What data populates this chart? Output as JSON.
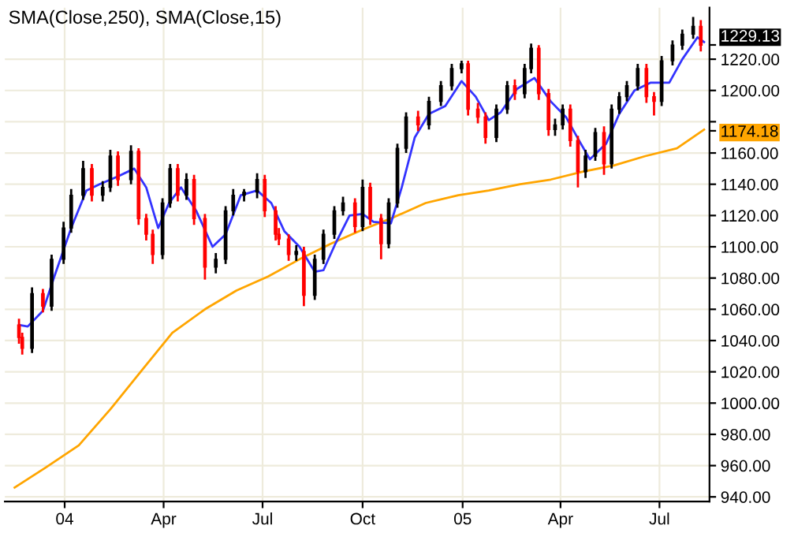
{
  "chart_data": {
    "type": "candlestick",
    "title": "SMA(Close,250), SMA(Close,15)",
    "x": [
      "2003-11-20",
      "2003-11-23",
      "2003-12-02",
      "2003-12-12",
      "2003-12-20",
      "2003-12-31",
      "2004-01-07",
      "2004-01-18",
      "2004-01-26",
      "2004-02-05",
      "2004-02-12",
      "2004-02-19",
      "2004-03-02",
      "2004-03-09",
      "2004-03-16",
      "2004-03-22",
      "2004-03-31",
      "2004-04-07",
      "2004-04-14",
      "2004-04-22",
      "2004-04-29",
      "2004-05-09",
      "2004-05-19",
      "2004-05-28",
      "2004-06-04",
      "2004-06-14",
      "2004-06-26",
      "2004-07-03",
      "2004-07-13",
      "2004-07-16",
      "2004-07-25",
      "2004-08-01",
      "2004-08-08",
      "2004-08-18",
      "2004-08-26",
      "2004-09-05",
      "2004-09-13",
      "2004-09-24",
      "2004-10-01",
      "2004-10-08",
      "2004-10-18",
      "2004-10-25",
      "2004-11-02",
      "2004-11-10",
      "2004-11-21",
      "2004-12-01",
      "2004-12-12",
      "2004-12-22",
      "2004-12-31",
      "2005-01-06",
      "2005-01-15",
      "2005-01-22",
      "2005-02-01",
      "2005-02-11",
      "2005-02-18",
      "2005-02-27",
      "2005-03-05",
      "2005-03-12",
      "2005-03-21",
      "2005-03-27",
      "2005-04-03",
      "2005-04-10",
      "2005-04-17",
      "2005-04-24",
      "2005-05-03",
      "2005-05-11",
      "2005-05-18",
      "2005-05-25",
      "2005-06-01",
      "2005-06-11",
      "2005-06-19",
      "2005-06-26",
      "2005-07-03",
      "2005-07-13",
      "2005-07-22",
      "2005-08-01",
      "2005-08-08"
    ],
    "ohlc": [
      [
        1050,
        1054,
        1038,
        1042
      ],
      [
        1042,
        1045,
        1031,
        1035
      ],
      [
        1035,
        1074,
        1032,
        1070
      ],
      [
        1070,
        1073,
        1058,
        1062
      ],
      [
        1062,
        1095,
        1059,
        1092
      ],
      [
        1092,
        1116,
        1089,
        1112
      ],
      [
        1112,
        1137,
        1109,
        1133
      ],
      [
        1133,
        1155,
        1130,
        1150
      ],
      [
        1150,
        1153,
        1129,
        1133
      ],
      [
        1133,
        1142,
        1129,
        1138
      ],
      [
        1138,
        1162,
        1135,
        1158
      ],
      [
        1158,
        1161,
        1139,
        1143
      ],
      [
        1143,
        1165,
        1140,
        1161
      ],
      [
        1161,
        1163,
        1114,
        1118
      ],
      [
        1118,
        1121,
        1104,
        1108
      ],
      [
        1108,
        1111,
        1089,
        1095
      ],
      [
        1095,
        1131,
        1092,
        1128
      ],
      [
        1128,
        1153,
        1125,
        1150
      ],
      [
        1150,
        1153,
        1129,
        1133
      ],
      [
        1133,
        1147,
        1130,
        1143
      ],
      [
        1143,
        1146,
        1114,
        1118
      ],
      [
        1118,
        1121,
        1079,
        1087
      ],
      [
        1087,
        1096,
        1083,
        1092
      ],
      [
        1092,
        1126,
        1089,
        1123
      ],
      [
        1123,
        1137,
        1120,
        1133
      ],
      [
        1133,
        1137,
        1129,
        1135
      ],
      [
        1135,
        1147,
        1131,
        1143
      ],
      [
        1143,
        1146,
        1119,
        1123
      ],
      [
        1123,
        1126,
        1104,
        1108
      ],
      [
        1108,
        1112,
        1101,
        1105
      ],
      [
        1105,
        1108,
        1091,
        1095
      ],
      [
        1095,
        1101,
        1091,
        1097
      ],
      [
        1097,
        1100,
        1062,
        1069
      ],
      [
        1069,
        1095,
        1066,
        1092
      ],
      [
        1092,
        1111,
        1089,
        1108
      ],
      [
        1108,
        1126,
        1105,
        1123
      ],
      [
        1123,
        1132,
        1120,
        1128
      ],
      [
        1128,
        1131,
        1109,
        1113
      ],
      [
        1113,
        1143,
        1110,
        1138
      ],
      [
        1138,
        1141,
        1114,
        1118
      ],
      [
        1118,
        1121,
        1092,
        1102
      ],
      [
        1102,
        1131,
        1099,
        1128
      ],
      [
        1128,
        1166,
        1125,
        1163
      ],
      [
        1163,
        1186,
        1160,
        1183
      ],
      [
        1183,
        1187,
        1174,
        1178
      ],
      [
        1178,
        1196,
        1175,
        1193
      ],
      [
        1193,
        1206,
        1190,
        1203
      ],
      [
        1203,
        1217,
        1200,
        1214
      ],
      [
        1214,
        1219,
        1211,
        1217
      ],
      [
        1217,
        1219,
        1184,
        1188
      ],
      [
        1188,
        1192,
        1179,
        1183
      ],
      [
        1183,
        1186,
        1166,
        1170
      ],
      [
        1170,
        1191,
        1167,
        1188
      ],
      [
        1188,
        1206,
        1185,
        1203
      ],
      [
        1203,
        1207,
        1194,
        1198
      ],
      [
        1198,
        1217,
        1195,
        1214
      ],
      [
        1214,
        1230,
        1211,
        1227
      ],
      [
        1227,
        1229,
        1194,
        1198
      ],
      [
        1198,
        1201,
        1171,
        1175
      ],
      [
        1175,
        1182,
        1171,
        1178
      ],
      [
        1178,
        1191,
        1175,
        1188
      ],
      [
        1188,
        1191,
        1164,
        1168
      ],
      [
        1168,
        1171,
        1138,
        1148
      ],
      [
        1148,
        1162,
        1144,
        1158
      ],
      [
        1158,
        1176,
        1155,
        1173
      ],
      [
        1173,
        1177,
        1146,
        1153
      ],
      [
        1153,
        1191,
        1150,
        1188
      ],
      [
        1188,
        1199,
        1185,
        1196
      ],
      [
        1196,
        1206,
        1193,
        1203
      ],
      [
        1203,
        1217,
        1200,
        1214
      ],
      [
        1214,
        1217,
        1192,
        1196
      ],
      [
        1196,
        1199,
        1184,
        1193
      ],
      [
        1193,
        1222,
        1190,
        1219
      ],
      [
        1219,
        1232,
        1216,
        1229
      ],
      [
        1229,
        1239,
        1226,
        1236
      ],
      [
        1236,
        1247,
        1233,
        1241
      ],
      [
        1241,
        1245,
        1225,
        1229
      ]
    ],
    "colors": [
      "#ff0000",
      "#ff0000",
      "#000000",
      "#ff0000",
      "#000000",
      "#000000",
      "#000000",
      "#000000",
      "#ff0000",
      "#000000",
      "#000000",
      "#ff0000",
      "#000000",
      "#ff0000",
      "#ff0000",
      "#ff0000",
      "#000000",
      "#000000",
      "#ff0000",
      "#000000",
      "#ff0000",
      "#ff0000",
      "#000000",
      "#000000",
      "#000000",
      "#000000",
      "#000000",
      "#ff0000",
      "#ff0000",
      "#ff0000",
      "#ff0000",
      "#000000",
      "#ff0000",
      "#000000",
      "#000000",
      "#000000",
      "#000000",
      "#ff0000",
      "#000000",
      "#ff0000",
      "#ff0000",
      "#000000",
      "#000000",
      "#000000",
      "#ff0000",
      "#000000",
      "#000000",
      "#000000",
      "#000000",
      "#ff0000",
      "#ff0000",
      "#ff0000",
      "#000000",
      "#000000",
      "#ff0000",
      "#000000",
      "#000000",
      "#ff0000",
      "#ff0000",
      "#000000",
      "#000000",
      "#ff0000",
      "#ff0000",
      "#000000",
      "#000000",
      "#ff0000",
      "#000000",
      "#000000",
      "#000000",
      "#000000",
      "#ff0000",
      "#ff0000",
      "#000000",
      "#000000",
      "#000000",
      "#000000",
      "#ff0000"
    ],
    "series": [
      {
        "type": "line",
        "color": "#ffa500",
        "x": [
          "2003-11-16",
          "2003-12-15",
          "2004-01-14",
          "2004-02-12",
          "2004-03-12",
          "2004-04-09",
          "2004-05-09",
          "2004-06-07",
          "2004-07-06",
          "2004-08-04",
          "2004-09-02",
          "2004-10-01",
          "2004-10-30",
          "2004-11-28",
          "2004-12-28",
          "2005-01-25",
          "2005-02-23",
          "2005-03-23",
          "2005-04-21",
          "2005-05-20",
          "2005-06-18",
          "2005-07-17",
          "2005-08-11"
        ],
        "values": [
          946,
          959,
          973,
          996,
          1021,
          1045,
          1060,
          1072,
          1081,
          1092,
          1102,
          1111,
          1119,
          1128,
          1133,
          1136,
          1140,
          1143,
          1148,
          1152,
          1158,
          1163,
          1175
        ]
      },
      {
        "type": "line",
        "color": "#3333ff",
        "x": [
          "2003-11-20",
          "2003-11-28",
          "2003-12-12",
          "2003-12-23",
          "2004-01-07",
          "2004-01-21",
          "2004-02-02",
          "2004-02-19",
          "2004-03-05",
          "2004-03-16",
          "2004-03-27",
          "2004-04-06",
          "2004-04-17",
          "2004-05-01",
          "2004-05-16",
          "2004-05-28",
          "2004-06-11",
          "2004-06-26",
          "2004-07-09",
          "2004-07-21",
          "2004-08-04",
          "2004-08-18",
          "2004-08-26",
          "2004-09-06",
          "2004-09-19",
          "2004-10-01",
          "2004-10-11",
          "2004-10-27",
          "2004-11-06",
          "2004-11-18",
          "2004-12-01",
          "2004-12-16",
          "2004-12-31",
          "2005-01-13",
          "2005-01-25",
          "2005-02-05",
          "2005-02-20",
          "2005-03-08",
          "2005-03-23",
          "2005-04-06",
          "2005-04-18",
          "2005-04-28",
          "2005-05-13",
          "2005-05-25",
          "2005-06-08",
          "2005-06-23",
          "2005-07-10",
          "2005-07-22",
          "2005-08-05",
          "2005-08-11"
        ],
        "values": [
          1050,
          1049,
          1059,
          1082,
          1112,
          1136,
          1140,
          1145,
          1150,
          1138,
          1112,
          1128,
          1138,
          1123,
          1100,
          1108,
          1133,
          1136,
          1128,
          1110,
          1100,
          1084,
          1085,
          1102,
          1120,
          1121,
          1116,
          1115,
          1138,
          1170,
          1185,
          1190,
          1206,
          1196,
          1181,
          1186,
          1201,
          1208,
          1193,
          1183,
          1168,
          1156,
          1166,
          1185,
          1200,
          1205,
          1205,
          1220,
          1234,
          1231
        ]
      }
    ],
    "xlim": [
      "2003-11-07",
      "2005-08-16"
    ],
    "xticks": [
      {
        "value": "2004-01-01",
        "label": "04"
      },
      {
        "value": "2004-04-01",
        "label": "Apr"
      },
      {
        "value": "2004-07-01",
        "label": "Jul"
      },
      {
        "value": "2004-10-01",
        "label": "Oct"
      },
      {
        "value": "2005-01-01",
        "label": "05"
      },
      {
        "value": "2005-04-01",
        "label": "Apr"
      },
      {
        "value": "2005-07-01",
        "label": "Jul"
      }
    ],
    "ylim": [
      937,
      1253
    ],
    "yticks": [
      {
        "value": 940,
        "label": "940.00"
      },
      {
        "value": 960,
        "label": "960.00"
      },
      {
        "value": 980,
        "label": "980.00"
      },
      {
        "value": 1000,
        "label": "1000.00"
      },
      {
        "value": 1020,
        "label": "1020.00"
      },
      {
        "value": 1040,
        "label": "1040.00"
      },
      {
        "value": 1060,
        "label": "1060.00"
      },
      {
        "value": 1080,
        "label": "1080.00"
      },
      {
        "value": 1100,
        "label": "1100.00"
      },
      {
        "value": 1120,
        "label": "1120.00"
      },
      {
        "value": 1140,
        "label": "1140.00"
      },
      {
        "value": 1160,
        "label": "1160.00"
      },
      {
        "value": 1174.18,
        "label": "1174.18"
      },
      {
        "value": 1180,
        "label": null
      },
      {
        "value": 1200,
        "label": "1200.00"
      },
      {
        "value": 1220,
        "label": "1220.00"
      },
      {
        "value": 1229.13,
        "label": "1229.13"
      }
    ],
    "grid": true
  }
}
